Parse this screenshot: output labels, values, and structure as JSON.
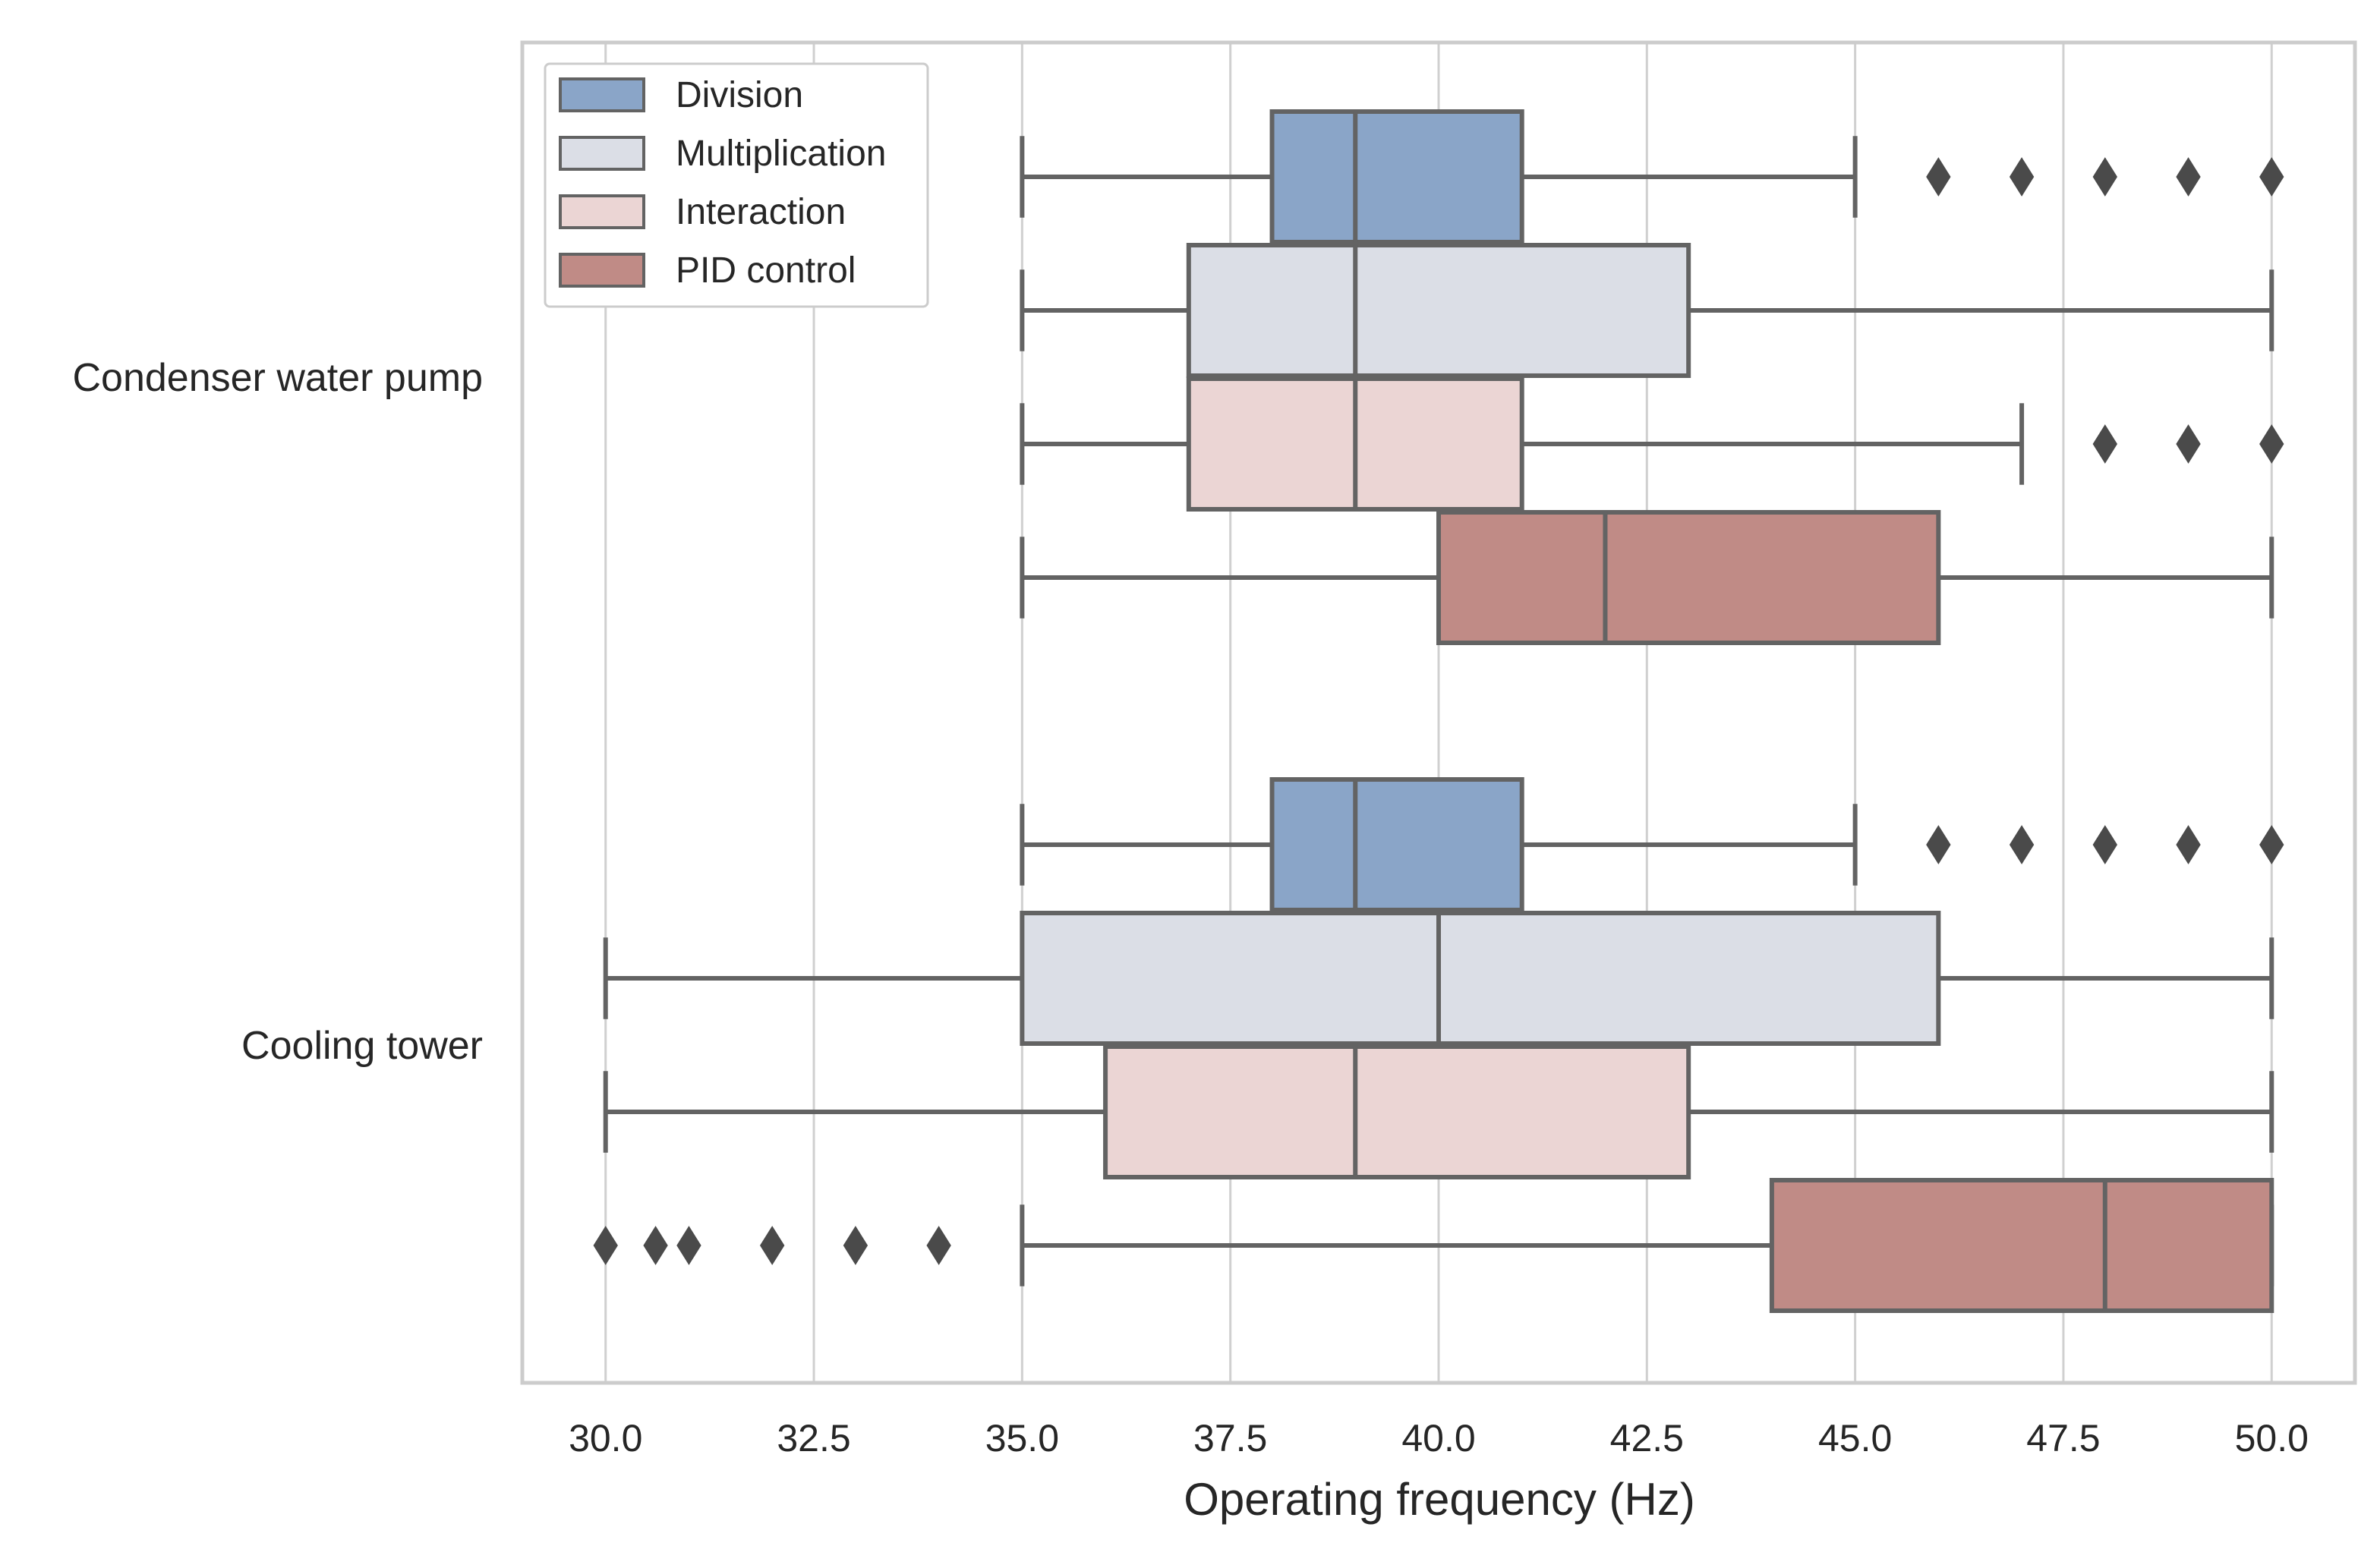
{
  "chart_data": {
    "type": "boxplot",
    "orientation": "horizontal",
    "xlabel": "Operating frequency (Hz)",
    "ylabel": "",
    "xlim": [
      29,
      51
    ],
    "xticks": [
      "30.0",
      "32.5",
      "35.0",
      "37.5",
      "40.0",
      "42.5",
      "45.0",
      "47.5",
      "50.0"
    ],
    "grid": "vertical",
    "legend": {
      "position": "top-left"
    },
    "categories": [
      "Condenser water pump",
      "Cooling tower"
    ],
    "series": [
      {
        "name": "Division",
        "color": "#8aa5c8",
        "boxes": [
          {
            "category": "Condenser water pump",
            "whisker_low": 35,
            "q1": 38,
            "median": 39,
            "q3": 41,
            "whisker_high": 45,
            "outliers": [
              46,
              47,
              48,
              49,
              50
            ]
          },
          {
            "category": "Cooling tower",
            "whisker_low": 35,
            "q1": 38,
            "median": 39,
            "q3": 41,
            "whisker_high": 45,
            "outliers": [
              46,
              47,
              48,
              49,
              50
            ]
          }
        ]
      },
      {
        "name": "Multiplication",
        "color": "#dbdee6",
        "boxes": [
          {
            "category": "Condenser water pump",
            "whisker_low": 35,
            "q1": 37,
            "median": 39,
            "q3": 43,
            "whisker_high": 50,
            "outliers": []
          },
          {
            "category": "Cooling tower",
            "whisker_low": 30,
            "q1": 35,
            "median": 40,
            "q3": 46,
            "whisker_high": 50,
            "outliers": []
          }
        ]
      },
      {
        "name": "Interaction",
        "color": "#ebd5d4",
        "boxes": [
          {
            "category": "Condenser water pump",
            "whisker_low": 35,
            "q1": 37,
            "median": 39,
            "q3": 41,
            "whisker_high": 47,
            "outliers": [
              48,
              49,
              50
            ]
          },
          {
            "category": "Cooling tower",
            "whisker_low": 30,
            "q1": 36,
            "median": 39,
            "q3": 43,
            "whisker_high": 50,
            "outliers": []
          }
        ]
      },
      {
        "name": "PID control",
        "color": "#c08b86",
        "boxes": [
          {
            "category": "Condenser water pump",
            "whisker_low": 35,
            "q1": 40,
            "median": 42,
            "q3": 46,
            "whisker_high": 50,
            "outliers": []
          },
          {
            "category": "Cooling tower",
            "whisker_low": 35,
            "q1": 44,
            "median": 48,
            "q3": 50,
            "whisker_high": 50,
            "outliers": [
              30,
              30.6,
              31,
              32,
              33,
              34
            ]
          }
        ]
      }
    ]
  }
}
